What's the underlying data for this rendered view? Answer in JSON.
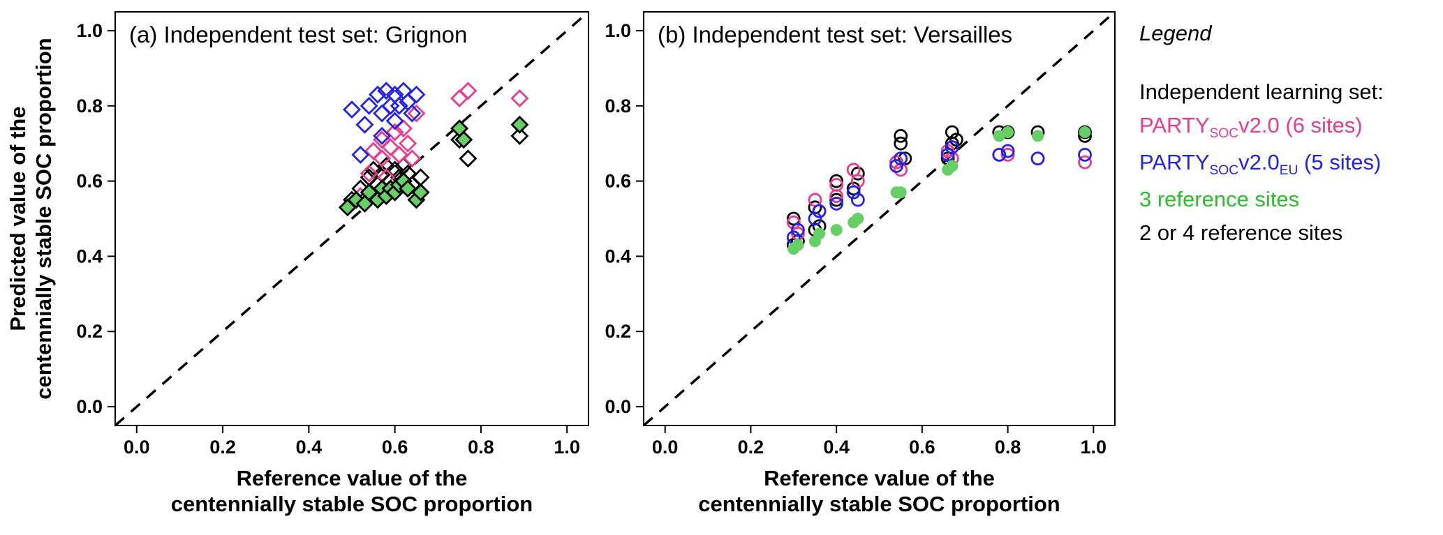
{
  "legend": {
    "title": "Legend",
    "subtitle": "Independent learning set:",
    "entries": [
      {
        "id": "party-v20",
        "color": "#EE3A8C",
        "parts": [
          {
            "t": "PARTY"
          },
          {
            "t": "SOC",
            "sub": true
          },
          {
            "t": "v2.0 (6 sites)"
          }
        ]
      },
      {
        "id": "party-v20-eu",
        "color": "#2222EE",
        "parts": [
          {
            "t": "PARTY"
          },
          {
            "t": "SOC",
            "sub": true
          },
          {
            "t": "v2.0"
          },
          {
            "t": "EU",
            "sub": true
          },
          {
            "t": " (5 sites)"
          }
        ]
      },
      {
        "id": "ref-3",
        "color": "#2DBE2D",
        "parts": [
          {
            "t": "3 reference sites"
          }
        ]
      },
      {
        "id": "ref-2or4",
        "color": "#000000",
        "parts": [
          {
            "t": "2 or 4 reference sites"
          }
        ]
      }
    ]
  },
  "chart_data": [
    {
      "id": "a",
      "type": "scatter",
      "marker": "diamond",
      "title": "(a) Independent test set: Grignon",
      "xlabel_lines": [
        "Reference value of the",
        "centennially stable SOC proportion"
      ],
      "ylabel_lines": [
        "Predicted value of the",
        "centennially stable SOC proportion"
      ],
      "xlim": [
        -0.05,
        1.05
      ],
      "ylim": [
        -0.05,
        1.05
      ],
      "xticks": [
        0.0,
        0.2,
        0.4,
        0.6,
        0.8,
        1.0
      ],
      "yticks": [
        0.0,
        0.2,
        0.4,
        0.6,
        0.8,
        1.0
      ],
      "xtick_labels": [
        "0.0",
        "0.2",
        "0.4",
        "0.6",
        "0.8",
        "1.0"
      ],
      "ytick_labels": [
        "0.0",
        "0.2",
        "0.4",
        "0.6",
        "0.8",
        "1.0"
      ],
      "identity_line": true,
      "series": [
        {
          "id": "ref-2or4",
          "name": "2 or 4 reference sites",
          "stroke": "#000000",
          "fill": "none",
          "points": [
            [
              0.5,
              0.55
            ],
            [
              0.52,
              0.58
            ],
            [
              0.54,
              0.61
            ],
            [
              0.55,
              0.63
            ],
            [
              0.56,
              0.59
            ],
            [
              0.57,
              0.62
            ],
            [
              0.58,
              0.64
            ],
            [
              0.59,
              0.6
            ],
            [
              0.6,
              0.63
            ],
            [
              0.61,
              0.61
            ],
            [
              0.62,
              0.64
            ],
            [
              0.63,
              0.62
            ],
            [
              0.64,
              0.59
            ],
            [
              0.66,
              0.61
            ],
            [
              0.75,
              0.71
            ],
            [
              0.77,
              0.66
            ],
            [
              0.89,
              0.72
            ]
          ]
        },
        {
          "id": "party-v20",
          "name": "PARTYsoc v2.0 (6 sites)",
          "stroke": "#EE3A8C",
          "fill": "none",
          "points": [
            [
              0.52,
              0.56
            ],
            [
              0.54,
              0.62
            ],
            [
              0.55,
              0.68
            ],
            [
              0.57,
              0.66
            ],
            [
              0.57,
              0.71
            ],
            [
              0.58,
              0.61
            ],
            [
              0.59,
              0.69
            ],
            [
              0.6,
              0.73
            ],
            [
              0.61,
              0.67
            ],
            [
              0.62,
              0.74
            ],
            [
              0.63,
              0.7
            ],
            [
              0.64,
              0.66
            ],
            [
              0.65,
              0.78
            ],
            [
              0.75,
              0.82
            ],
            [
              0.77,
              0.84
            ],
            [
              0.89,
              0.82
            ]
          ]
        },
        {
          "id": "party-v20-eu",
          "name": "PARTYsoc v2.0 EU (5 sites)",
          "stroke": "#2222EE",
          "fill": "none",
          "points": [
            [
              0.5,
              0.79
            ],
            [
              0.52,
              0.67
            ],
            [
              0.53,
              0.75
            ],
            [
              0.54,
              0.8
            ],
            [
              0.56,
              0.83
            ],
            [
              0.57,
              0.78
            ],
            [
              0.57,
              0.72
            ],
            [
              0.58,
              0.84
            ],
            [
              0.59,
              0.8
            ],
            [
              0.6,
              0.76
            ],
            [
              0.6,
              0.83
            ],
            [
              0.61,
              0.8
            ],
            [
              0.62,
              0.84
            ],
            [
              0.63,
              0.81
            ],
            [
              0.64,
              0.78
            ],
            [
              0.65,
              0.83
            ]
          ]
        },
        {
          "id": "ref-3",
          "name": "3 reference sites",
          "stroke": "#000000",
          "fill": "#66D066",
          "points": [
            [
              0.49,
              0.53
            ],
            [
              0.51,
              0.55
            ],
            [
              0.53,
              0.54
            ],
            [
              0.54,
              0.57
            ],
            [
              0.56,
              0.55
            ],
            [
              0.57,
              0.58
            ],
            [
              0.58,
              0.56
            ],
            [
              0.59,
              0.58
            ],
            [
              0.6,
              0.57
            ],
            [
              0.61,
              0.59
            ],
            [
              0.62,
              0.6
            ],
            [
              0.63,
              0.58
            ],
            [
              0.65,
              0.55
            ],
            [
              0.66,
              0.57
            ],
            [
              0.75,
              0.74
            ],
            [
              0.76,
              0.71
            ],
            [
              0.89,
              0.75
            ]
          ]
        }
      ]
    },
    {
      "id": "b",
      "type": "scatter",
      "marker": "circle",
      "title": "(b) Independent test set: Versailles",
      "xlabel_lines": [
        "Reference value of the",
        "centennially stable SOC proportion"
      ],
      "ylabel_lines": [],
      "xlim": [
        -0.05,
        1.05
      ],
      "ylim": [
        -0.05,
        1.05
      ],
      "xticks": [
        0.0,
        0.2,
        0.4,
        0.6,
        0.8,
        1.0
      ],
      "yticks": [
        0.0,
        0.2,
        0.4,
        0.6,
        0.8,
        1.0
      ],
      "xtick_labels": [
        "0.0",
        "0.2",
        "0.4",
        "0.6",
        "0.8",
        "1.0"
      ],
      "ytick_labels": [
        "0.0",
        "0.2",
        "0.4",
        "0.6",
        "0.8",
        "1.0"
      ],
      "identity_line": true,
      "series": [
        {
          "id": "ref-2or4",
          "name": "2 or 4 reference sites",
          "stroke": "#000000",
          "fill": "none",
          "points": [
            [
              0.3,
              0.43
            ],
            [
              0.3,
              0.5
            ],
            [
              0.31,
              0.44
            ],
            [
              0.35,
              0.47
            ],
            [
              0.35,
              0.53
            ],
            [
              0.36,
              0.48
            ],
            [
              0.4,
              0.55
            ],
            [
              0.4,
              0.6
            ],
            [
              0.44,
              0.58
            ],
            [
              0.45,
              0.62
            ],
            [
              0.54,
              0.65
            ],
            [
              0.55,
              0.7
            ],
            [
              0.55,
              0.72
            ],
            [
              0.56,
              0.66
            ],
            [
              0.66,
              0.66
            ],
            [
              0.67,
              0.7
            ],
            [
              0.67,
              0.73
            ],
            [
              0.68,
              0.71
            ],
            [
              0.78,
              0.73
            ],
            [
              0.8,
              0.73
            ],
            [
              0.87,
              0.73
            ],
            [
              0.98,
              0.73
            ],
            [
              0.98,
              0.72
            ]
          ]
        },
        {
          "id": "party-v20",
          "name": "PARTYsoc v2.0 (6 sites)",
          "stroke": "#EE3A8C",
          "fill": "none",
          "points": [
            [
              0.3,
              0.49
            ],
            [
              0.31,
              0.46
            ],
            [
              0.35,
              0.55
            ],
            [
              0.36,
              0.52
            ],
            [
              0.4,
              0.59
            ],
            [
              0.4,
              0.56
            ],
            [
              0.44,
              0.63
            ],
            [
              0.45,
              0.6
            ],
            [
              0.54,
              0.65
            ],
            [
              0.55,
              0.63
            ],
            [
              0.66,
              0.68
            ],
            [
              0.67,
              0.66
            ],
            [
              0.78,
              0.67
            ],
            [
              0.8,
              0.67
            ],
            [
              0.87,
              0.66
            ],
            [
              0.98,
              0.65
            ]
          ]
        },
        {
          "id": "party-v20-eu",
          "name": "PARTYsoc v2.0 EU (5 sites)",
          "stroke": "#2222EE",
          "fill": "none",
          "points": [
            [
              0.3,
              0.45
            ],
            [
              0.31,
              0.47
            ],
            [
              0.35,
              0.5
            ],
            [
              0.36,
              0.52
            ],
            [
              0.4,
              0.54
            ],
            [
              0.44,
              0.57
            ],
            [
              0.45,
              0.55
            ],
            [
              0.54,
              0.64
            ],
            [
              0.55,
              0.66
            ],
            [
              0.66,
              0.67
            ],
            [
              0.67,
              0.69
            ],
            [
              0.78,
              0.67
            ],
            [
              0.8,
              0.68
            ],
            [
              0.87,
              0.66
            ],
            [
              0.98,
              0.67
            ]
          ]
        },
        {
          "id": "ref-3",
          "name": "3 reference sites",
          "stroke": "none",
          "fill": "#66D066",
          "points": [
            [
              0.3,
              0.42
            ],
            [
              0.31,
              0.43
            ],
            [
              0.35,
              0.44
            ],
            [
              0.36,
              0.46
            ],
            [
              0.4,
              0.47
            ],
            [
              0.44,
              0.49
            ],
            [
              0.45,
              0.5
            ],
            [
              0.54,
              0.57
            ],
            [
              0.55,
              0.57
            ],
            [
              0.66,
              0.63
            ],
            [
              0.67,
              0.64
            ],
            [
              0.78,
              0.72
            ],
            [
              0.8,
              0.73
            ],
            [
              0.87,
              0.72
            ],
            [
              0.98,
              0.73
            ]
          ]
        }
      ]
    }
  ]
}
